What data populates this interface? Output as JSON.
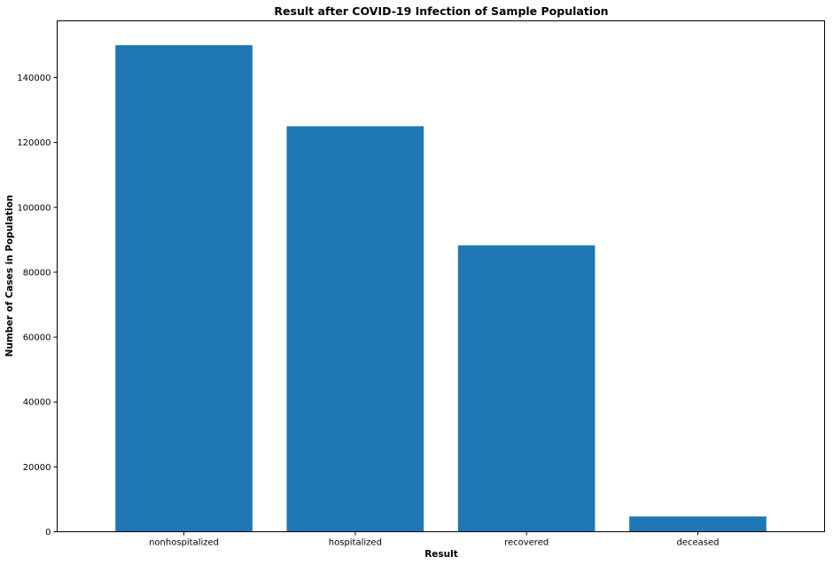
{
  "chart_data": {
    "type": "bar",
    "title": "Result after COVID-19 Infection of Sample Population",
    "xlabel": "Result",
    "ylabel": "Number of Cases in Population",
    "categories": [
      "nonhospitalized",
      "hospitalized",
      "recovered",
      "deceased"
    ],
    "values": [
      150000,
      125000,
      88300,
      4700
    ],
    "ylim": [
      0,
      157500
    ],
    "yticks": [
      0,
      20000,
      40000,
      60000,
      80000,
      100000,
      120000,
      140000
    ],
    "ytick_labels": [
      "0",
      "20000",
      "40000",
      "60000",
      "80000",
      "100000",
      "120000",
      "140000"
    ],
    "bar_color": "#1f77b4",
    "grid": false,
    "legend": "none"
  }
}
